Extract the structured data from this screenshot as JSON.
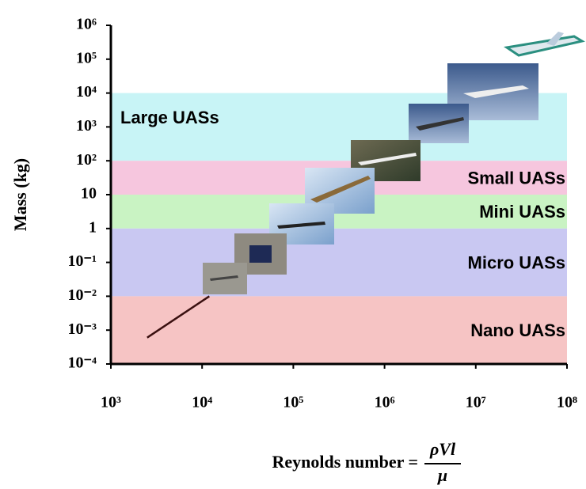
{
  "chart_data": {
    "type": "band",
    "y_label": "Mass (kg)",
    "x_label": "Reynolds number =",
    "x_label_numerator": "ρVl",
    "x_label_denominator": "μ",
    "x_log": true,
    "y_log": true,
    "xlim": [
      1000,
      100000000
    ],
    "ylim": [
      0.0001,
      1000000
    ],
    "xticks": [
      {
        "value": 1000,
        "label": "10³"
      },
      {
        "value": 10000,
        "label": "10⁴"
      },
      {
        "value": 100000,
        "label": "10⁵"
      },
      {
        "value": 1000000,
        "label": "10⁶"
      },
      {
        "value": 10000000,
        "label": "10⁷"
      },
      {
        "value": 100000000,
        "label": "10⁸"
      }
    ],
    "yticks": [
      {
        "value": 0.0001,
        "label": "10⁻⁴"
      },
      {
        "value": 0.001,
        "label": "10⁻³"
      },
      {
        "value": 0.01,
        "label": "10⁻²"
      },
      {
        "value": 0.1,
        "label": "10⁻¹"
      },
      1,
      10,
      {
        "value": 100,
        "label": "10²"
      },
      {
        "value": 1000,
        "label": "10³"
      },
      {
        "value": 10000,
        "label": "10⁴"
      },
      {
        "value": 100000,
        "label": "10⁵"
      },
      {
        "value": 1000000,
        "label": "10⁶"
      }
    ],
    "bands": [
      {
        "name": "Large UASs",
        "values": [
          100,
          10000
        ],
        "color": "#c8f4f6",
        "label_side": "left"
      },
      {
        "name": "Small UASs",
        "values": [
          10,
          100
        ],
        "color": "#f6c6de",
        "label_side": "right"
      },
      {
        "name": "Mini UASs",
        "values": [
          1,
          10
        ],
        "color": "#c9f3c3",
        "label_side": "right"
      },
      {
        "name": "Micro UASs",
        "values": [
          0.01,
          1
        ],
        "color": "#c9c8f2",
        "label_side": "right"
      },
      {
        "name": "Nano UASs",
        "values": [
          0.0001,
          0.01
        ],
        "color": "#f6c4c4",
        "label_side": "right"
      }
    ],
    "series": [
      {
        "x": [
          2500,
          12000
        ],
        "values": [
          0.0006,
          0.01
        ],
        "color": "#3a1010"
      }
    ]
  }
}
